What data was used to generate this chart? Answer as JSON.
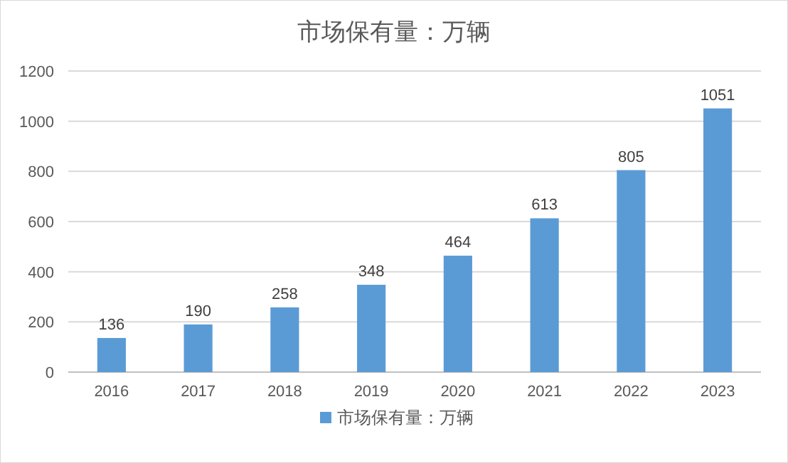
{
  "chart_data": {
    "type": "bar",
    "title": "市场保有量：万辆",
    "categories": [
      "2016",
      "2017",
      "2018",
      "2019",
      "2020",
      "2021",
      "2022",
      "2023"
    ],
    "series": [
      {
        "name": "市场保有量：万辆",
        "color": "#5b9bd5",
        "values": [
          136,
          190,
          258,
          348,
          464,
          613,
          805,
          1051
        ]
      }
    ],
    "ylim": [
      0,
      1200
    ],
    "yticks": [
      0,
      200,
      400,
      600,
      800,
      1000,
      1200
    ],
    "grid": "y",
    "legend": "bottom",
    "data_labels": true
  }
}
